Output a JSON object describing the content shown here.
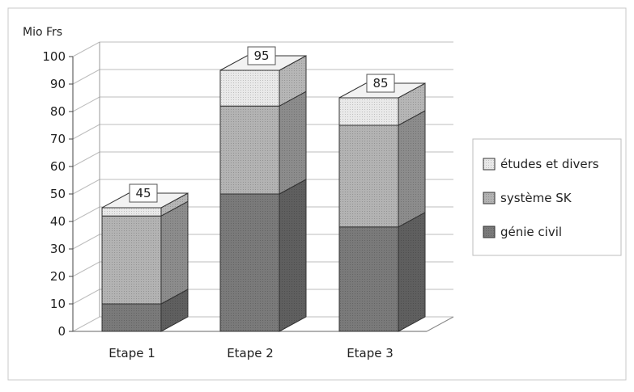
{
  "chart_data": {
    "type": "bar",
    "stacked": true,
    "three_d": true,
    "y_unit_label": "Mio Frs",
    "ylim": [
      0,
      100
    ],
    "y_ticks": [
      0,
      10,
      20,
      30,
      40,
      50,
      60,
      70,
      80,
      90,
      100
    ],
    "grid": true,
    "categories": [
      "Etape 1",
      "Etape 2",
      "Etape 3"
    ],
    "series": [
      {
        "name": "génie civil",
        "values": [
          10,
          50,
          38
        ],
        "color": "#7a7a7a"
      },
      {
        "name": "système SK",
        "values": [
          32,
          32,
          37
        ],
        "color": "#b3b3b3"
      },
      {
        "name": "études et divers",
        "values": [
          3,
          13,
          10
        ],
        "color": "#e9e9e9"
      }
    ],
    "totals": [
      "45",
      "95",
      "85"
    ],
    "legend_position": "right"
  }
}
